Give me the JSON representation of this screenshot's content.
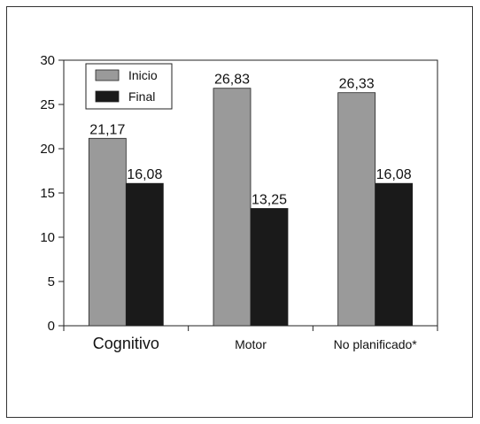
{
  "chart_data": {
    "type": "bar",
    "categories": [
      "Cognitivo",
      "Motor",
      "No planificado*"
    ],
    "series": [
      {
        "name": "Inicio",
        "values": [
          21.17,
          26.83,
          26.33
        ],
        "labels": [
          "21,17",
          "26,83",
          "26,33"
        ],
        "color": "#9a9a9a"
      },
      {
        "name": "Final",
        "values": [
          16.08,
          13.25,
          16.08
        ],
        "labels": [
          "16,08",
          "13,25",
          "16,08"
        ],
        "color": "#1a1a1a"
      }
    ],
    "yticks": [
      "0",
      "5",
      "10",
      "15",
      "20",
      "25",
      "30"
    ],
    "ylim": [
      0,
      30
    ],
    "grid": false,
    "legend_position": "top-left"
  }
}
